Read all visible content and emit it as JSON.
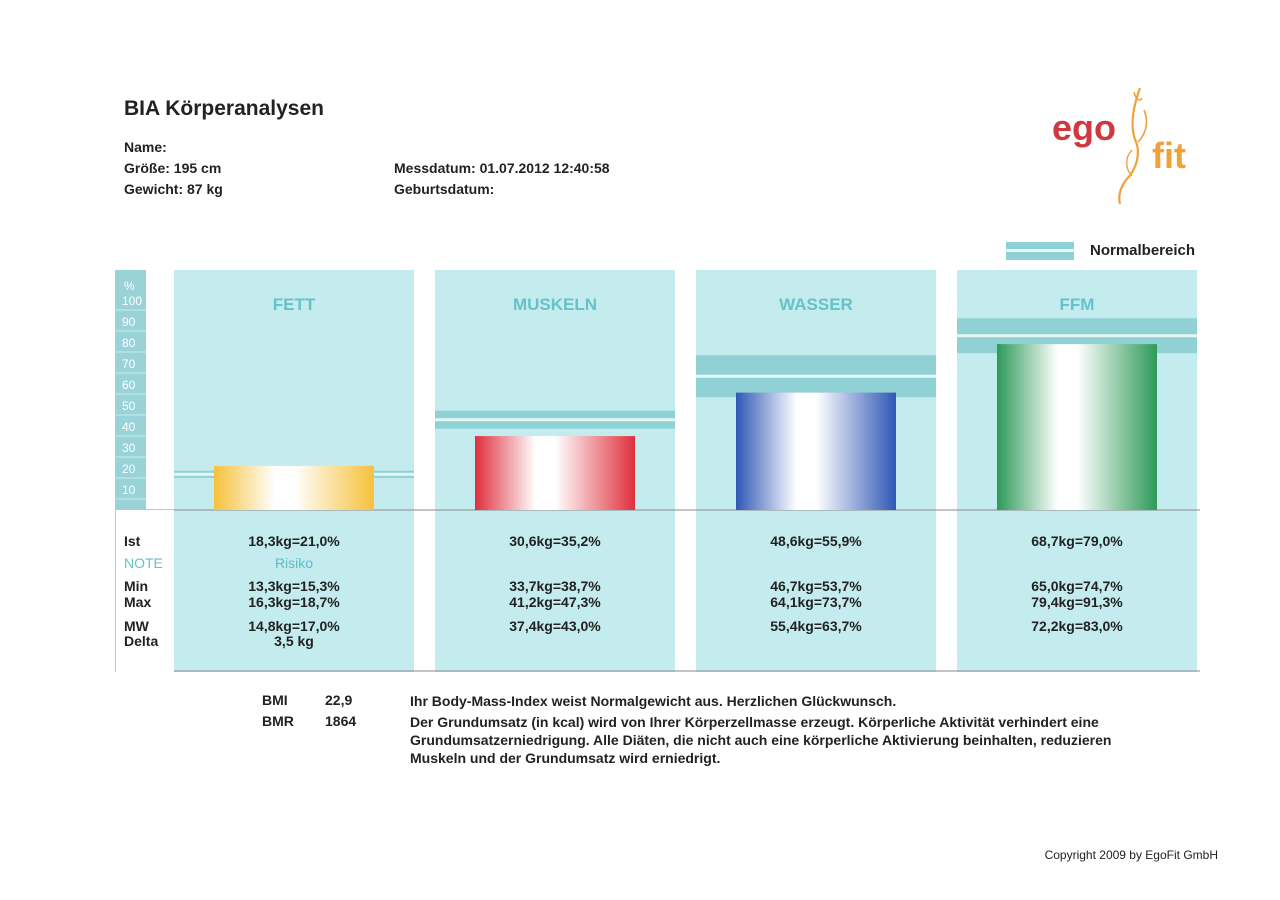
{
  "header": {
    "title": "BIA Körperanalysen",
    "name_label": "Name:",
    "groesse": "Größe: 195 cm",
    "gewicht": "Gewicht: 87 kg",
    "messdatum": "Messdatum: 01.07.2012 12:40:58",
    "geburtsdatum_label": "Geburtsdatum:"
  },
  "logo": {
    "text_left": "ego",
    "text_right": "fit",
    "color_left": "#d0383f",
    "color_right": "#f0a23a"
  },
  "legend": {
    "label": "Normalbereich",
    "color": "#8fd1d5"
  },
  "chart_data": {
    "type": "bar",
    "categories": [
      "FETT",
      "MUSKELN",
      "WASSER",
      "FFM"
    ],
    "values": [
      21.0,
      35.2,
      55.9,
      79.0
    ],
    "normal_ranges": [
      [
        15.3,
        18.7
      ],
      [
        38.7,
        47.3
      ],
      [
        53.7,
        73.7
      ],
      [
        74.7,
        91.3
      ]
    ],
    "colors": [
      "#f6c13a",
      "#df2f3d",
      "#2f57b5",
      "#2d9a58"
    ],
    "yaxis_unit": "%",
    "yticks": [
      10,
      20,
      30,
      40,
      50,
      60,
      70,
      80,
      90,
      100
    ],
    "ylim": [
      0,
      110
    ],
    "grid": false,
    "legend_position": "top-right"
  },
  "table": {
    "row_labels": {
      "ist": "Ist",
      "note": "NOTE",
      "min": "Min",
      "max": "Max",
      "mw": "MW",
      "delta": "Delta"
    },
    "columns": [
      {
        "ist": "18,3kg=21,0%",
        "note": "Risiko",
        "min": "13,3kg=15,3%",
        "max": "16,3kg=18,7%",
        "mw": "14,8kg=17,0%",
        "delta": "3,5 kg"
      },
      {
        "ist": "30,6kg=35,2%",
        "note": "",
        "min": "33,7kg=38,7%",
        "max": "41,2kg=47,3%",
        "mw": "37,4kg=43,0%",
        "delta": ""
      },
      {
        "ist": "48,6kg=55,9%",
        "note": "",
        "min": "46,7kg=53,7%",
        "max": "64,1kg=73,7%",
        "mw": "55,4kg=63,7%",
        "delta": ""
      },
      {
        "ist": "68,7kg=79,0%",
        "note": "",
        "min": "65,0kg=74,7%",
        "max": "79,4kg=91,3%",
        "mw": "72,2kg=83,0%",
        "delta": ""
      }
    ]
  },
  "indices": {
    "bmi_label": "BMI",
    "bmi_value": "22,9",
    "bmr_label": "BMR",
    "bmr_value": "1864",
    "bmi_text": "Ihr Body-Mass-Index weist Normalgewicht aus. Herzlichen Glückwunsch.",
    "bmr_text_1": "Der Grundumsatz (in kcal) wird von Ihrer Körperzellmasse erzeugt. Körperliche Aktivität verhindert eine",
    "bmr_text_2": "Grundumsatzerniedrigung. Alle Diäten, die nicht auch eine körperliche Aktivierung beinhalten, reduzieren",
    "bmr_text_3": "Muskeln und der Grundumsatz wird erniedrigt."
  },
  "footer": {
    "copyright": "Copyright 2009 by EgoFit GmbH"
  }
}
